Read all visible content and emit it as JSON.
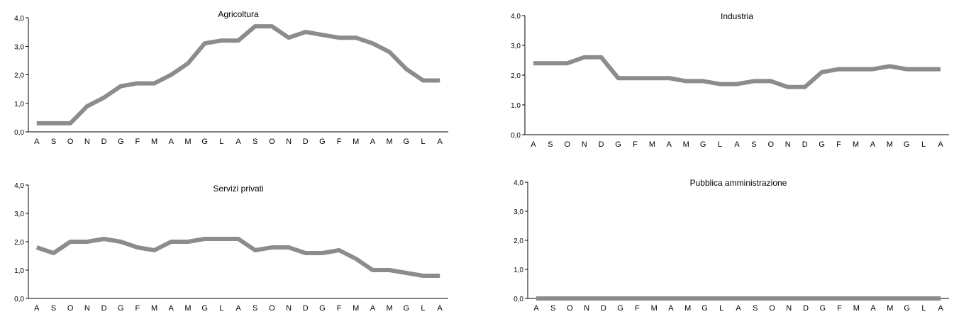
{
  "chart_data": [
    {
      "type": "line",
      "title": "Agricoltura",
      "categories": [
        "A",
        "S",
        "O",
        "N",
        "D",
        "G",
        "F",
        "M",
        "A",
        "M",
        "G",
        "L",
        "A",
        "S",
        "O",
        "N",
        "D",
        "G",
        "F",
        "M",
        "A",
        "M",
        "G",
        "L",
        "A"
      ],
      "series": [
        {
          "values": [
            0.3,
            0.3,
            0.3,
            0.9,
            1.2,
            1.6,
            1.7,
            1.7,
            2.0,
            2.4,
            3.1,
            3.2,
            3.2,
            3.7,
            3.7,
            3.3,
            3.5,
            3.4,
            3.3,
            3.3,
            3.1,
            2.8,
            2.2,
            1.8,
            1.8
          ]
        }
      ],
      "ylim": [
        0,
        4
      ],
      "yticks": [
        "0,0",
        "1,0",
        "2,0",
        "3,0",
        "4,0"
      ],
      "line_color": "#8c8c8c"
    },
    {
      "type": "line",
      "title": "Industria",
      "categories": [
        "A",
        "S",
        "O",
        "N",
        "D",
        "G",
        "F",
        "M",
        "A",
        "M",
        "G",
        "L",
        "A",
        "S",
        "O",
        "N",
        "D",
        "G",
        "F",
        "M",
        "A",
        "M",
        "G",
        "L",
        "A"
      ],
      "series": [
        {
          "values": [
            2.4,
            2.4,
            2.4,
            2.6,
            2.6,
            1.9,
            1.9,
            1.9,
            1.9,
            1.8,
            1.8,
            1.7,
            1.7,
            1.8,
            1.8,
            1.6,
            1.6,
            2.1,
            2.2,
            2.2,
            2.2,
            2.3,
            2.2,
            2.2,
            2.2
          ]
        }
      ],
      "ylim": [
        0,
        4
      ],
      "yticks": [
        "0,0",
        "1,0",
        "2,0",
        "3,0",
        "4,0"
      ],
      "line_color": "#8c8c8c"
    },
    {
      "type": "line",
      "title": "Servizi privati",
      "categories": [
        "A",
        "S",
        "O",
        "N",
        "D",
        "G",
        "F",
        "M",
        "A",
        "M",
        "G",
        "L",
        "A",
        "S",
        "O",
        "N",
        "D",
        "G",
        "F",
        "M",
        "A",
        "M",
        "G",
        "L",
        "A"
      ],
      "series": [
        {
          "values": [
            1.8,
            1.6,
            2.0,
            2.0,
            2.1,
            2.0,
            1.8,
            1.7,
            2.0,
            2.0,
            2.1,
            2.1,
            2.1,
            1.7,
            1.8,
            1.8,
            1.6,
            1.6,
            1.7,
            1.4,
            1.0,
            1.0,
            0.9,
            0.8,
            0.8
          ]
        }
      ],
      "ylim": [
        0,
        4
      ],
      "yticks": [
        "0,0",
        "1,0",
        "2,0",
        "3,0",
        "4,0"
      ],
      "line_color": "#8c8c8c"
    },
    {
      "type": "line",
      "title": "Pubblica amministrazione",
      "categories": [
        "A",
        "S",
        "O",
        "N",
        "D",
        "G",
        "F",
        "M",
        "A",
        "M",
        "G",
        "L",
        "A",
        "S",
        "O",
        "N",
        "D",
        "G",
        "F",
        "M",
        "A",
        "M",
        "G",
        "L",
        "A"
      ],
      "series": [
        {
          "values": [
            0,
            0,
            0,
            0,
            0,
            0,
            0,
            0,
            0,
            0,
            0,
            0,
            0,
            0,
            0,
            0,
            0,
            0,
            0,
            0,
            0,
            0,
            0,
            0,
            0
          ]
        }
      ],
      "ylim": [
        0,
        4
      ],
      "yticks": [
        "0,0",
        "1,0",
        "2,0",
        "3,0",
        "4,0"
      ],
      "line_color": "#8c8c8c"
    }
  ]
}
